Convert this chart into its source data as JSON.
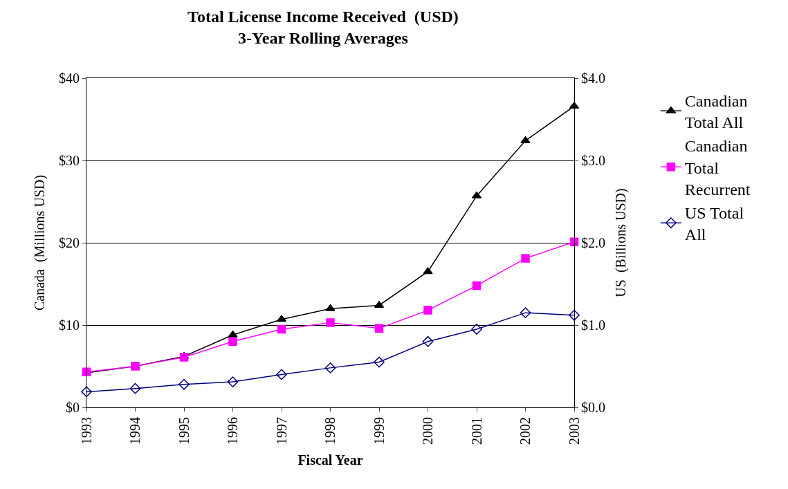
{
  "chart_data": {
    "type": "line",
    "title": "Total License Income Received  (USD)\n3-Year Rolling Averages",
    "xlabel": "Fiscal Year",
    "ylabel": "Canada  (Millions USD)",
    "y2label": "US  (Billions USD)",
    "categories": [
      "1993",
      "1994",
      "1995",
      "1996",
      "1997",
      "1998",
      "1999",
      "2000",
      "2001",
      "2002",
      "2003"
    ],
    "series": [
      {
        "name": "Canadian Total All",
        "color": "#000000",
        "marker": "triangle",
        "values": [
          4.2,
          5.0,
          6.2,
          8.8,
          10.7,
          12.0,
          12.4,
          16.5,
          25.7,
          32.4,
          36.6
        ]
      },
      {
        "name": "Canadian Total Recurrent",
        "color": "#ff00ff",
        "marker": "square",
        "values": [
          4.3,
          5.0,
          6.1,
          8.0,
          9.5,
          10.3,
          9.6,
          11.8,
          14.8,
          18.1,
          20.1
        ]
      },
      {
        "name": "US Total All",
        "color": "#000080",
        "marker": "diamond",
        "axis": "y2",
        "values": [
          0.19,
          0.23,
          0.28,
          0.31,
          0.4,
          0.48,
          0.55,
          0.8,
          0.95,
          1.15,
          1.12
        ]
      }
    ],
    "ylim": [
      0,
      40
    ],
    "yticks": [
      {
        "value": 0,
        "label": "$0"
      },
      {
        "value": 10,
        "label": "$10"
      },
      {
        "value": 20,
        "label": "$20"
      },
      {
        "value": 30,
        "label": "$30"
      },
      {
        "value": 40,
        "label": "$40"
      }
    ],
    "y2lim": [
      0,
      4
    ],
    "y2ticks": [
      {
        "value": 0,
        "label": "$0.0"
      },
      {
        "value": 1,
        "label": "$1.0"
      },
      {
        "value": 2,
        "label": "$2.0"
      },
      {
        "value": 3,
        "label": "$3.0"
      },
      {
        "value": 4,
        "label": "$4.0"
      }
    ],
    "grid": "y",
    "legend": "right",
    "line_style": "solid"
  }
}
